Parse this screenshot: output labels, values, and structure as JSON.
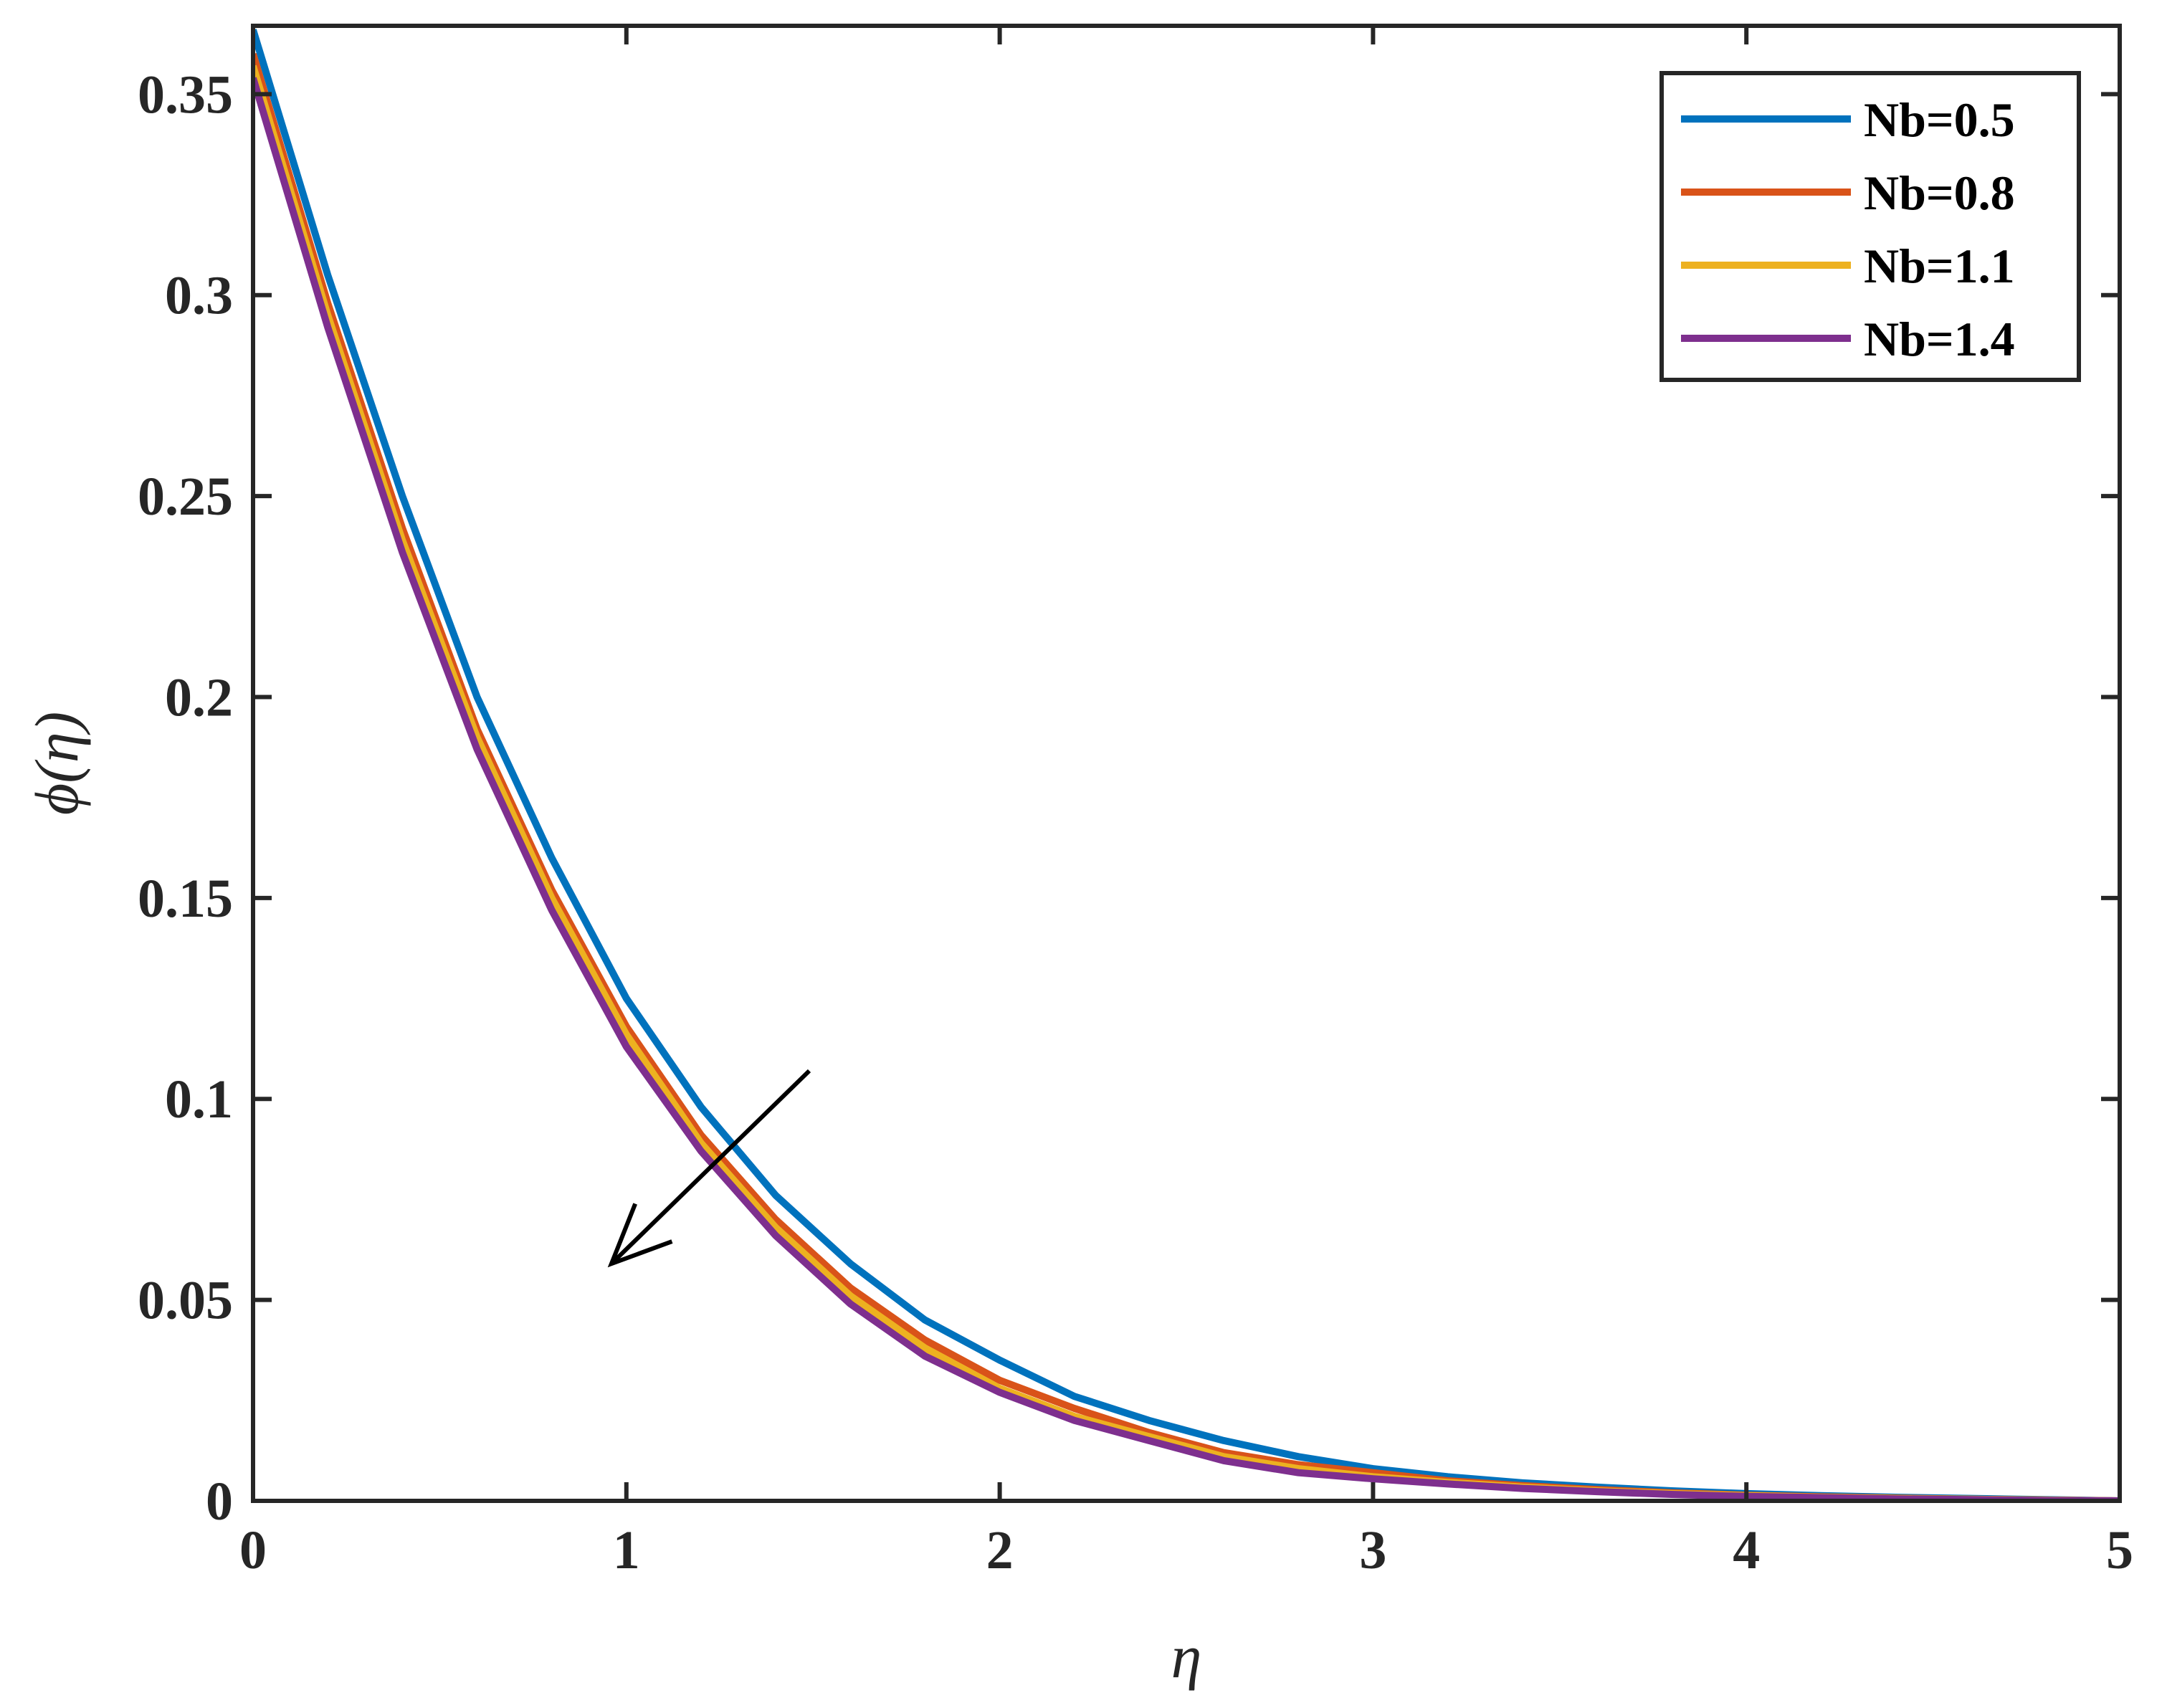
{
  "chart_data": {
    "type": "line",
    "xlabel": "η",
    "ylabel": "ϕ(η)",
    "xlim": [
      0,
      5
    ],
    "ylim": [
      0,
      0.367
    ],
    "xticks": [
      "0",
      "1",
      "2",
      "3",
      "4",
      "5"
    ],
    "yticks": [
      "0",
      "0.05",
      "0.1",
      "0.15",
      "0.2",
      "0.25",
      "0.3",
      "0.35"
    ],
    "grid": false,
    "legend_position": "top-right",
    "x": [
      0,
      0.2,
      0.4,
      0.6,
      0.8,
      1.0,
      1.2,
      1.4,
      1.6,
      1.8,
      2.0,
      2.2,
      2.4,
      2.6,
      2.8,
      3.0,
      3.2,
      3.4,
      3.6,
      3.8,
      4.0,
      4.2,
      4.4,
      4.6,
      4.8,
      5.0
    ],
    "series": [
      {
        "name": "Nb=0.5",
        "color": "#0072BD",
        "values": [
          0.366,
          0.305,
          0.25,
          0.2,
          0.16,
          0.125,
          0.098,
          0.076,
          0.059,
          0.045,
          0.035,
          0.026,
          0.02,
          0.015,
          0.011,
          0.008,
          0.006,
          0.0045,
          0.0034,
          0.0025,
          0.0018,
          0.0013,
          0.0009,
          0.0006,
          0.0003,
          0.0
        ]
      },
      {
        "name": "Nb=0.8",
        "color": "#D95319",
        "values": [
          0.36,
          0.298,
          0.242,
          0.192,
          0.152,
          0.118,
          0.091,
          0.07,
          0.053,
          0.04,
          0.03,
          0.023,
          0.017,
          0.012,
          0.009,
          0.007,
          0.005,
          0.0038,
          0.0028,
          0.002,
          0.0014,
          0.001,
          0.0007,
          0.0004,
          0.0002,
          0.0
        ]
      },
      {
        "name": "Nb=1.1",
        "color": "#EDB120",
        "values": [
          0.357,
          0.295,
          0.239,
          0.19,
          0.15,
          0.116,
          0.089,
          0.068,
          0.051,
          0.038,
          0.028,
          0.021,
          0.016,
          0.011,
          0.008,
          0.006,
          0.0046,
          0.0034,
          0.0025,
          0.0018,
          0.0013,
          0.0009,
          0.0006,
          0.0004,
          0.0002,
          0.0
        ]
      },
      {
        "name": "Nb=1.4",
        "color": "#7E2F8E",
        "values": [
          0.354,
          0.292,
          0.236,
          0.187,
          0.147,
          0.113,
          0.087,
          0.066,
          0.049,
          0.036,
          0.027,
          0.02,
          0.015,
          0.01,
          0.007,
          0.0055,
          0.0042,
          0.0031,
          0.0023,
          0.0016,
          0.0011,
          0.0008,
          0.0005,
          0.0003,
          0.0001,
          0.0
        ]
      }
    ],
    "annotations": [
      {
        "type": "arrow",
        "from": [
          1.49,
          0.107
        ],
        "to": [
          0.96,
          0.059
        ]
      }
    ]
  }
}
